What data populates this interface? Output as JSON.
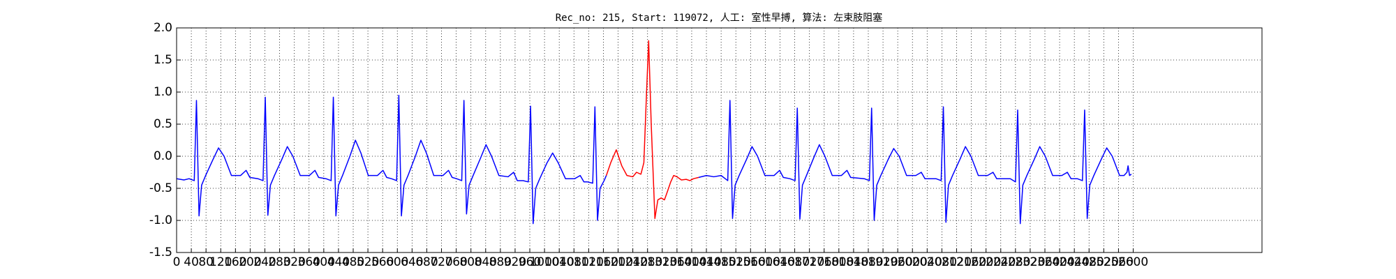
{
  "chart_data": {
    "type": "line",
    "title": "Rec_no: 215, Start: 119072, 人工: 室性早搏, 算法: 左束肢阻塞",
    "xlim": [
      0,
      2950
    ],
    "xticks": [
      0,
      40,
      80,
      120,
      160,
      200,
      240,
      280,
      320,
      360,
      400,
      440,
      480,
      520,
      560,
      600,
      640,
      680,
      720,
      760,
      800,
      840,
      880,
      920,
      960,
      1000,
      1040,
      1080,
      1120,
      1160,
      1200,
      1240,
      1280,
      1320,
      1360,
      1400,
      1440,
      1480,
      1520,
      1560,
      1600,
      1640,
      1680,
      1720,
      1760,
      1800,
      1840,
      1880,
      1920,
      1960,
      2000,
      2040,
      2080,
      2120,
      2160,
      2200,
      2240,
      2280,
      2320,
      2360,
      2400,
      2440,
      2480,
      2520,
      2560,
      2600
    ],
    "ylim": [
      -1.5,
      2.0
    ],
    "yticks": [
      -1.5,
      {
        "value": -1.0,
        "label": "-1.0"
      },
      -0.5,
      {
        "value": 0,
        "label": "0.0"
      },
      0.5,
      {
        "value": 1.0,
        "label": "1.0"
      },
      1.5,
      {
        "value": 2.0,
        "label": "2.0"
      }
    ],
    "grid": true,
    "series": [
      {
        "color": "#0000ff",
        "x": [
          0,
          20,
          34,
          48,
          54,
          61,
          68,
          79,
          99,
          114,
          129,
          149,
          174,
          189,
          199,
          221,
          235,
          241,
          248,
          255,
          266,
          286,
          301,
          316,
          336,
          361,
          376,
          386,
          406,
          420,
          426,
          433,
          440,
          451,
          471,
          486,
          501,
          521,
          546,
          561,
          571,
          584,
          598,
          604,
          611,
          618,
          629,
          649,
          664,
          679,
          699,
          724,
          739,
          749,
          761,
          775,
          781,
          788,
          795,
          806,
          826,
          841,
          856,
          876,
          901,
          916,
          926,
          942,
          956,
          962,
          969,
          976,
          987,
          1007,
          1022,
          1037,
          1057,
          1082,
          1097,
          1107,
          1117,
          1131,
          1137,
          1144,
          1151,
          1162,
          1168
        ],
        "values": [
          -0.35,
          -0.37,
          -0.35,
          -0.38,
          0.87,
          -0.93,
          -0.45,
          -0.3,
          -0.05,
          0.13,
          0.0,
          -0.3,
          -0.3,
          -0.22,
          -0.33,
          -0.35,
          -0.38,
          0.92,
          -0.92,
          -0.45,
          -0.3,
          -0.05,
          0.15,
          0.0,
          -0.3,
          -0.3,
          -0.22,
          -0.33,
          -0.35,
          -0.38,
          0.92,
          -0.93,
          -0.45,
          -0.3,
          0.0,
          0.25,
          0.05,
          -0.3,
          -0.3,
          -0.22,
          -0.33,
          -0.35,
          -0.38,
          0.95,
          -0.93,
          -0.45,
          -0.3,
          0.0,
          0.25,
          0.05,
          -0.3,
          -0.3,
          -0.22,
          -0.33,
          -0.35,
          -0.38,
          0.87,
          -0.9,
          -0.45,
          -0.3,
          -0.03,
          0.18,
          0.0,
          -0.3,
          -0.32,
          -0.25,
          -0.38,
          -0.38,
          -0.4,
          0.78,
          -1.05,
          -0.5,
          -0.35,
          -0.1,
          0.05,
          -0.1,
          -0.35,
          -0.35,
          -0.3,
          -0.4,
          -0.4,
          -0.42,
          0.77,
          -1.0,
          -0.5,
          -0.38,
          -0.3
        ]
      },
      {
        "color": "#ff0000",
        "x": [
          1168,
          1180,
          1195,
          1210,
          1224,
          1240,
          1250,
          1262,
          1270,
          1276,
          1283,
          1290,
          1300,
          1308,
          1317,
          1326,
          1334,
          1343,
          1351,
          1360,
          1372,
          1385,
          1395,
          1405,
          1419
        ],
        "values": [
          -0.3,
          -0.1,
          0.1,
          -0.15,
          -0.3,
          -0.32,
          -0.25,
          -0.28,
          -0.1,
          0.8,
          1.8,
          0.5,
          -0.97,
          -0.68,
          -0.65,
          -0.68,
          -0.55,
          -0.4,
          -0.3,
          -0.32,
          -0.37,
          -0.36,
          -0.38,
          -0.35,
          -0.33
        ]
      },
      {
        "color": "#0000ff",
        "x": [
          1419,
          1440,
          1460,
          1480,
          1498,
          1504,
          1511,
          1518,
          1529,
          1549,
          1564,
          1579,
          1599,
          1624,
          1639,
          1649,
          1667,
          1681,
          1687,
          1694,
          1701,
          1712,
          1732,
          1747,
          1762,
          1782,
          1807,
          1822,
          1832,
          1869,
          1883,
          1889,
          1896,
          1903,
          1914,
          1934,
          1949,
          1964,
          1984,
          2009,
          2024,
          2034,
          2064,
          2078,
          2084,
          2091,
          2098,
          2109,
          2129,
          2144,
          2159,
          2179,
          2204,
          2219,
          2229,
          2266,
          2280,
          2286,
          2293,
          2300,
          2311,
          2331,
          2346,
          2361,
          2381,
          2406,
          2421,
          2431,
          2448,
          2462,
          2468,
          2475,
          2482,
          2493,
          2513,
          2528,
          2543,
          2563,
          2575,
          2583,
          2586,
          2590,
          2595
        ],
        "values": [
          -0.33,
          -0.3,
          -0.32,
          -0.3,
          -0.38,
          0.87,
          -0.97,
          -0.45,
          -0.3,
          -0.05,
          0.15,
          0.0,
          -0.3,
          -0.3,
          -0.22,
          -0.33,
          -0.35,
          -0.38,
          0.75,
          -0.98,
          -0.45,
          -0.3,
          -0.02,
          0.18,
          0.0,
          -0.3,
          -0.3,
          -0.22,
          -0.33,
          -0.35,
          -0.38,
          0.75,
          -1.0,
          -0.45,
          -0.3,
          -0.05,
          0.12,
          0.0,
          -0.3,
          -0.3,
          -0.25,
          -0.35,
          -0.35,
          -0.38,
          0.77,
          -1.03,
          -0.45,
          -0.3,
          -0.05,
          0.15,
          0.0,
          -0.3,
          -0.3,
          -0.25,
          -0.35,
          -0.35,
          -0.4,
          0.72,
          -1.05,
          -0.45,
          -0.3,
          -0.05,
          0.15,
          0.0,
          -0.3,
          -0.3,
          -0.25,
          -0.35,
          -0.35,
          -0.38,
          0.72,
          -0.97,
          -0.45,
          -0.3,
          -0.05,
          0.13,
          0.0,
          -0.3,
          -0.3,
          -0.25,
          -0.15,
          -0.3,
          -0.28
        ]
      }
    ]
  }
}
